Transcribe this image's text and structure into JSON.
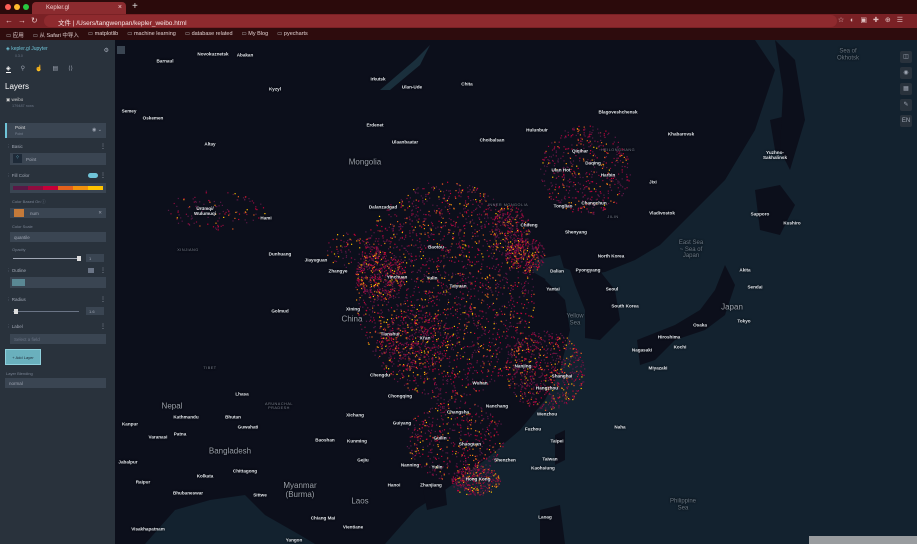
{
  "browser": {
    "tab_title": "Kepler.gl",
    "url_prefix": "文件",
    "url": "/Users/tangwenpan/kepler_weibo.html",
    "bookmarks": [
      "应用",
      "从 Safari 中导入",
      "matplotlib",
      "machine learning",
      "database related",
      "My Blog",
      "pyecharts"
    ]
  },
  "sidebar": {
    "app_title": "kepler.gl Jupyter",
    "app_version": "0.3.0",
    "tabs": [
      "layers",
      "filters",
      "interactions",
      "basemap",
      "export"
    ],
    "section_title": "Layers",
    "dataset": {
      "name": "weibo",
      "rows": "179487 rows"
    },
    "layer": {
      "title": "Point",
      "subtitle": "Point"
    },
    "basic": {
      "label": "Basic",
      "type": "Point"
    },
    "fill_color": {
      "label": "Fill Color",
      "enabled": true
    },
    "color_based_on": {
      "label": "Color Based On",
      "value": "num"
    },
    "color_scale": {
      "label": "Color Scale",
      "value": "quantile"
    },
    "opacity": {
      "label": "Opacity",
      "value": "1",
      "level": 1
    },
    "outline": {
      "label": "Outline",
      "enabled": false
    },
    "radius": {
      "label": "Radius",
      "value": "1.6",
      "level": 0.02
    },
    "label": {
      "label": "Label",
      "placeholder": "Select a field"
    },
    "add_layer": "+ Add Layer",
    "blending": {
      "label": "Layer Blending",
      "value": "normal"
    },
    "colors": {
      "ramp": [
        "#5a1846",
        "#900c3f",
        "#c70039",
        "#e3611c",
        "#f1920e",
        "#ffc300"
      ]
    }
  },
  "map": {
    "controls": [
      "split-map",
      "layer-legend",
      "toggle-3d",
      "draw",
      "locale"
    ],
    "locale": "EN",
    "labels": [
      "Barnaul",
      "Novokuznetsk",
      "Abakan",
      "Kyzyl",
      "Irkutsk",
      "Ulan-Ude",
      "Chita",
      "Semey",
      "Oskemen",
      "Altay",
      "Erdenet",
      "Ulaanbaatar",
      "Choibalsan",
      "Mongolia",
      "Hulunbuir",
      "Blagoveshchensk",
      "Khabarovsk",
      "Qiqihar",
      "HEILONGJIANG",
      "Daqing",
      "Harbin",
      "Ulan Hot",
      "Jixi",
      "Changchun",
      "Tongliao",
      "JILIN",
      "Vladivostok",
      "Ürümqi/\nWulumuqi",
      "Hami",
      "Dalanzadgad",
      "INNER MONGOLIA",
      "Chifeng",
      "Shenyang",
      "Yuzhno-\nSakhalinsk",
      "Sapporo",
      "Kushiro",
      "XINJIANG",
      "Dunhuang",
      "Jiayuguan",
      "Zhangye",
      "Baotou",
      "Yinchuan",
      "Yulin",
      "Taiyuan",
      "Dalian",
      "North Korea",
      "Pyongyang",
      "East Sea\n~ Sea of\nJapan",
      "Akita",
      "Sendai",
      "Sea of\nOkhotsk",
      "Golmud",
      "Xining",
      "China",
      "Tianshui",
      "Xi'an",
      "Yantai",
      "Yellow\nSea",
      "Seoul",
      "South Korea",
      "Japan",
      "Tokyo",
      "Osaka",
      "Hiroshima",
      "Kochi",
      "Nagasaki",
      "Miyazaki",
      "TIBET",
      "Chengdu",
      "Chongqing",
      "Lhasa",
      "ARUNACHAL\nPRADESH",
      "Nepal",
      "Kathmandu",
      "Bhutan",
      "Guwahati",
      "Kanpur",
      "Varanasi",
      "Patna",
      "Bangladesh",
      "Xichang",
      "Guiyang",
      "Baoshan",
      "Kunming",
      "Gejiu",
      "Guilin",
      "Shaoguan",
      "Nanchang",
      "Changsha",
      "Wuhan",
      "Nanjing",
      "Shanghai",
      "Hangzhou",
      "Wenzhou",
      "Fuzhou",
      "Taipei",
      "Taiwan",
      "Kaohsiung",
      "Naha",
      "Nanning",
      "Yulin",
      "Hong Kong",
      "Zhanjiang",
      "Hanoi",
      "Kolkata",
      "Chittagong",
      "Jabalpur",
      "Raipur",
      "Bhubaneswar",
      "Sittwe",
      "Myanmar\n(Burma)",
      "Laos",
      "Chiang Mai",
      "Vientiane",
      "Visakhapatnam",
      "Yangon",
      "Philippine\nSea",
      "Laoag",
      "Shenzhen"
    ]
  }
}
